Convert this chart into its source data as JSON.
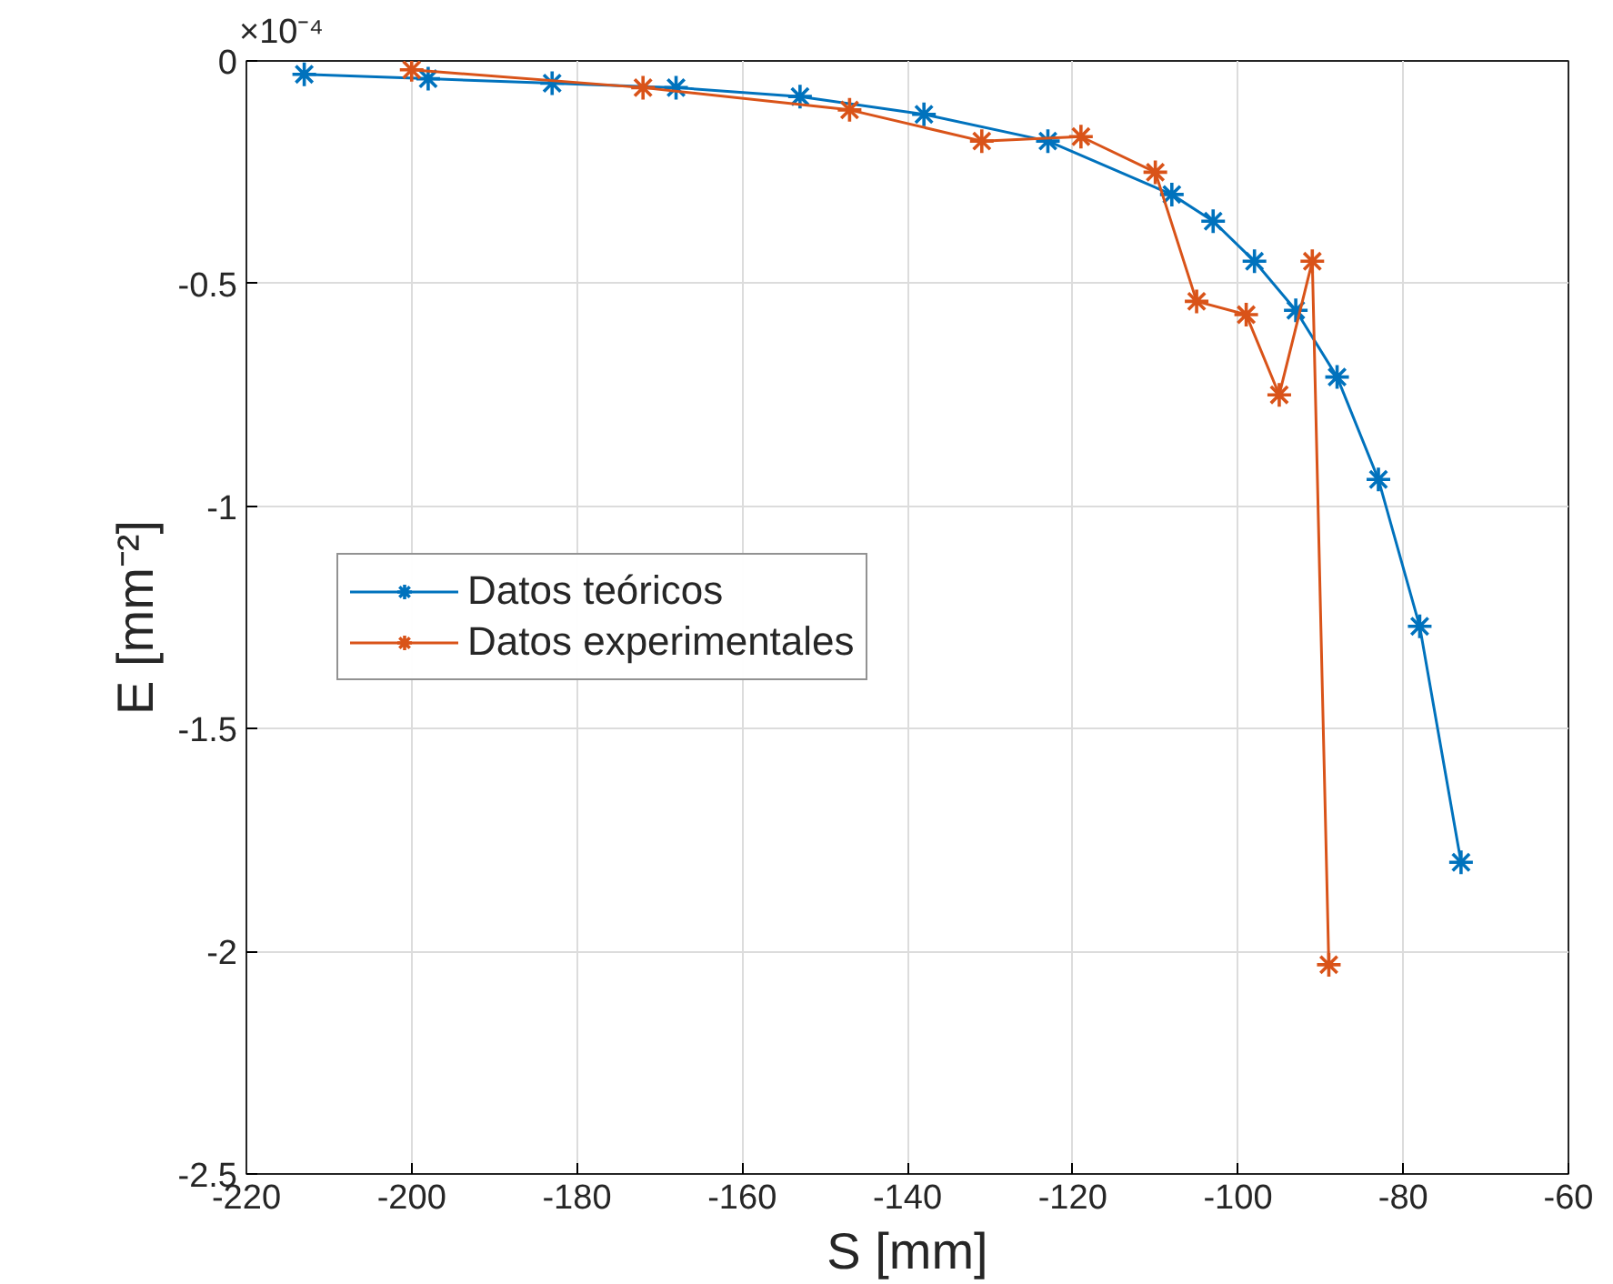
{
  "chart_data": {
    "type": "line",
    "xlabel": "S [mm]",
    "ylabel": "E [mm⁻²]",
    "annotations": [
      "×10⁻⁴"
    ],
    "xlim": [
      -220,
      -60
    ],
    "xticks": [
      -220,
      -200,
      -180,
      -160,
      -140,
      -120,
      -100,
      -80,
      -60
    ],
    "ylim": [
      -2.5,
      0
    ],
    "yticks": [
      -2.5,
      -2,
      -1.5,
      -1,
      -0.5,
      0
    ],
    "grid": true,
    "legend": "left",
    "marker": "cross",
    "line_style": "solid",
    "series": [
      {
        "name": "Datos teóricos",
        "color": "#0072bd",
        "x": [
          -213,
          -198,
          -183,
          -168,
          -153,
          -138,
          -123,
          -108,
          -103,
          -98,
          -93,
          -88,
          -83,
          -78,
          -73
        ],
        "values": [
          -0.03,
          -0.04,
          -0.05,
          -0.06,
          -0.08,
          -0.12,
          -0.18,
          -0.3,
          -0.36,
          -0.45,
          -0.56,
          -0.71,
          -0.94,
          -1.27,
          -1.8
        ]
      },
      {
        "name": "Datos experimentales",
        "color": "#d95319",
        "x": [
          -200,
          -172,
          -147,
          -131,
          -119,
          -110,
          -105,
          -99,
          -95,
          -91,
          -89
        ],
        "values": [
          -0.02,
          -0.06,
          -0.11,
          -0.18,
          -0.17,
          -0.25,
          -0.54,
          -0.57,
          -0.75,
          -0.45,
          -2.03
        ]
      }
    ]
  }
}
